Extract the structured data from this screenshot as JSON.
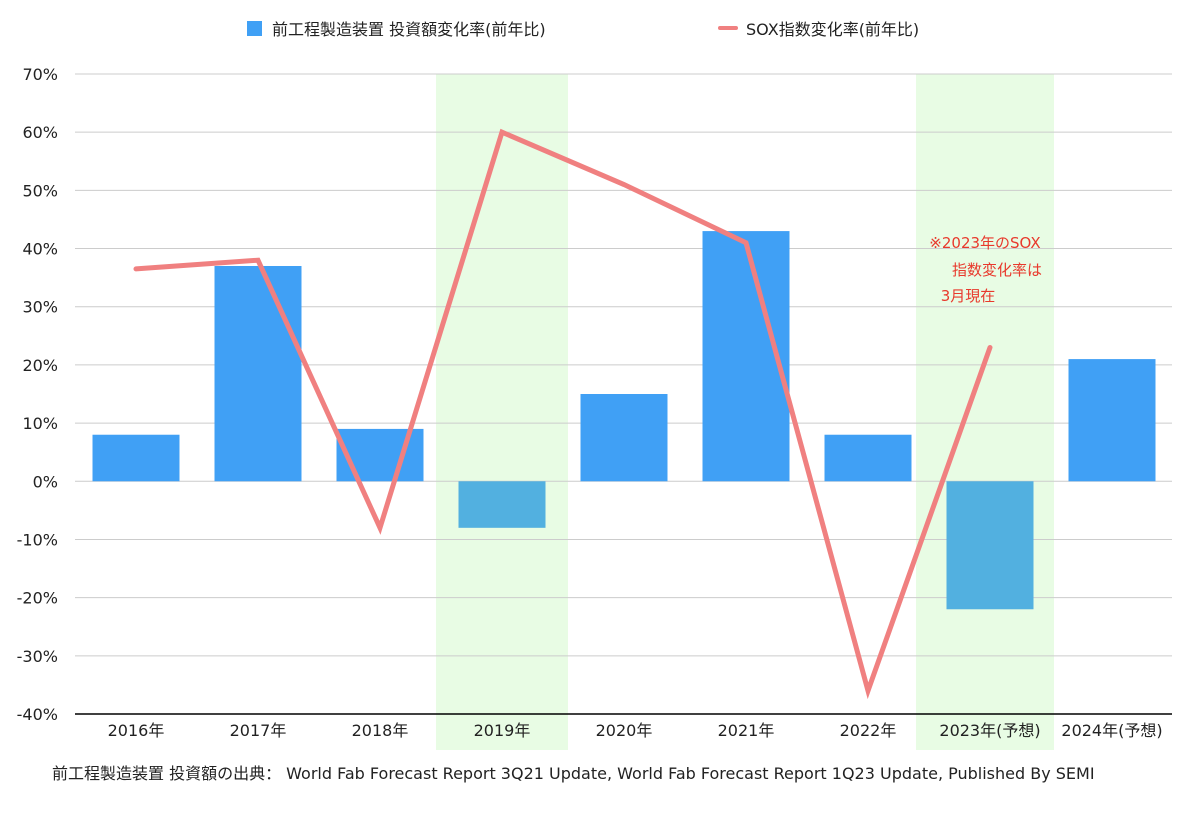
{
  "chart_data": {
    "type": "bar",
    "categories": [
      "2016年",
      "2017年",
      "2018年",
      "2019年",
      "2020年",
      "2021年",
      "2022年",
      "2023年(予想)",
      "2024年(予想)"
    ],
    "series": [
      {
        "name": "前工程製造装置 投資額変化率(前年比)",
        "kind": "bar",
        "values": [
          8,
          37,
          9,
          -8,
          15,
          43,
          8,
          -22,
          21
        ]
      },
      {
        "name": "SOX指数変化率(前年比)",
        "kind": "line",
        "values": [
          36.5,
          38,
          -8,
          60,
          51,
          41,
          -36,
          23,
          null
        ]
      }
    ],
    "y_ticks": [
      "70%",
      "60%",
      "50%",
      "40%",
      "30%",
      "20%",
      "10%",
      "0%",
      "-10%",
      "-20%",
      "-30%",
      "-40%"
    ],
    "ylim": [
      -40,
      70
    ],
    "highlighted_categories": [
      "2019年",
      "2023年(予想)"
    ],
    "annotation": [
      "※2023年のSOX",
      "指数変化率は",
      "3月現在"
    ],
    "legend_position": "top-center",
    "grid": true,
    "colors": {
      "bar": "#40a0f5",
      "bar_negative": "#52b0e0",
      "line": "#f08080",
      "highlight_band": "#e8fce4",
      "annotation": "#e8392c",
      "grid": "#cccccc",
      "axis": "#000000"
    }
  },
  "source_note": "前工程製造装置 投資額の出典： World Fab Forecast Report 3Q21 Update, World Fab Forecast Report 1Q23 Update, Published By SEMI"
}
